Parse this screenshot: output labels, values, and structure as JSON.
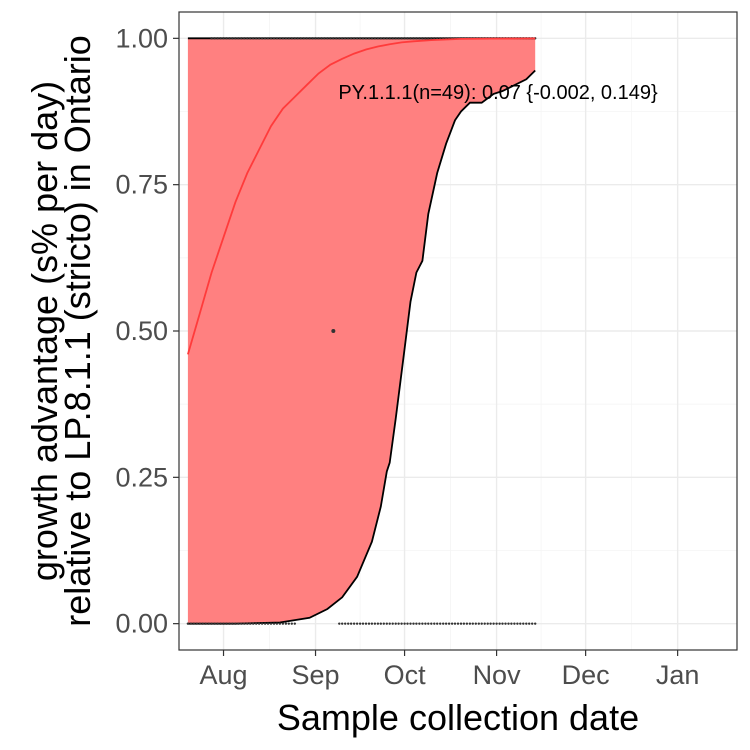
{
  "chart_data": {
    "type": "line",
    "title": "",
    "xlabel": "Sample collection date",
    "ylabel_lines": [
      "growth advantage (s% per day)",
      "relative to LP.8.1.1 (stricto) in Ontario"
    ],
    "x_axis_kind": "date",
    "xlim": [
      "2025-07-17",
      "2026-01-21"
    ],
    "ylim": [
      -0.045,
      1.045
    ],
    "x_ticks": [
      {
        "date": "2025-08-01",
        "label": "Aug"
      },
      {
        "date": "2025-09-01",
        "label": "Sep"
      },
      {
        "date": "2025-10-01",
        "label": "Oct"
      },
      {
        "date": "2025-11-01",
        "label": "Nov"
      },
      {
        "date": "2025-12-01",
        "label": "Dec"
      },
      {
        "date": "2026-01-01",
        "label": "Jan"
      }
    ],
    "y_ticks": [
      {
        "value": 0,
        "label": "0.00"
      },
      {
        "value": 0.25,
        "label": "0.25"
      },
      {
        "value": 0.5,
        "label": "0.50"
      },
      {
        "value": 0.75,
        "label": "0.75"
      },
      {
        "value": 1.0,
        "label": "1.00"
      }
    ],
    "grid": true,
    "colors": {
      "fit": "#ff3b3b",
      "ribbon": "#ff8080",
      "bound": "#000000",
      "points": "#333333",
      "panel_border": "#333333",
      "grid_major": "#ebebeb",
      "grid_minor": "#f5f5f5"
    },
    "annotation": "PY.1.1.1(n=49): 0.07 {-0.002, 0.149}",
    "fit_line": {
      "x": [
        "2025-07-20",
        "2025-07-24",
        "2025-07-28",
        "2025-08-01",
        "2025-08-05",
        "2025-08-09",
        "2025-08-13",
        "2025-08-17",
        "2025-08-21",
        "2025-08-25",
        "2025-08-29",
        "2025-09-02",
        "2025-09-06",
        "2025-09-10",
        "2025-09-14",
        "2025-09-18",
        "2025-09-22",
        "2025-09-26",
        "2025-09-30",
        "2025-10-04",
        "2025-10-10",
        "2025-10-20",
        "2025-10-30",
        "2025-11-09",
        "2025-11-14"
      ],
      "y": [
        0.46,
        0.53,
        0.6,
        0.66,
        0.72,
        0.77,
        0.81,
        0.85,
        0.88,
        0.9,
        0.92,
        0.94,
        0.955,
        0.965,
        0.974,
        0.981,
        0.986,
        0.99,
        0.993,
        0.995,
        0.997,
        0.999,
        0.9995,
        0.9998,
        0.9999
      ]
    },
    "upper_bound": {
      "x": [
        "2025-07-20",
        "2025-11-14"
      ],
      "y": [
        1.0,
        1.0
      ]
    },
    "lower_bound": {
      "x": [
        "2025-07-20",
        "2025-08-05",
        "2025-08-20",
        "2025-08-30",
        "2025-09-05",
        "2025-09-10",
        "2025-09-15",
        "2025-09-20",
        "2025-09-23",
        "2025-09-25",
        "2025-09-26",
        "2025-09-28",
        "2025-10-01",
        "2025-10-03",
        "2025-10-05",
        "2025-10-07",
        "2025-10-09",
        "2025-10-12",
        "2025-10-15",
        "2025-10-18",
        "2025-10-20",
        "2025-10-23",
        "2025-10-27",
        "2025-10-31",
        "2025-11-03",
        "2025-11-07",
        "2025-11-11",
        "2025-11-14"
      ],
      "y": [
        0.0,
        0.0,
        0.002,
        0.01,
        0.025,
        0.045,
        0.08,
        0.14,
        0.2,
        0.26,
        0.275,
        0.35,
        0.47,
        0.55,
        0.6,
        0.62,
        0.7,
        0.77,
        0.82,
        0.86,
        0.875,
        0.89,
        0.89,
        0.905,
        0.91,
        0.92,
        0.93,
        0.945
      ]
    },
    "observations": [
      {
        "x": "2025-09-07",
        "y": 0.5
      }
    ],
    "observation_ranges": [
      {
        "start": "2025-07-20",
        "end": "2025-08-25",
        "y": 0
      },
      {
        "start": "2025-09-09",
        "end": "2025-11-14",
        "y": 0
      },
      {
        "start": "2025-07-28",
        "end": "2025-11-14",
        "y": 1
      }
    ]
  }
}
